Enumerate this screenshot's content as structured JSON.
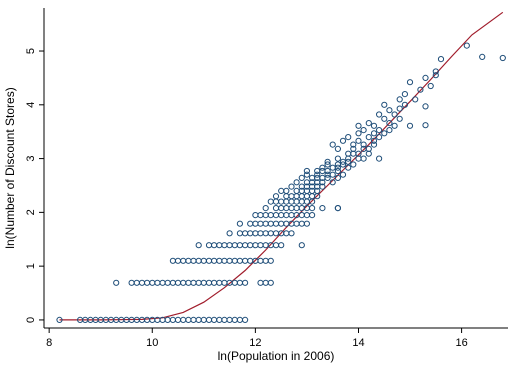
{
  "chart_data": {
    "type": "scatter",
    "xlabel": "ln(Population in 2006)",
    "ylabel": "ln(Number of Discount Stores)",
    "xlim": [
      7.9,
      16.9
    ],
    "ylim": [
      -0.15,
      5.8
    ],
    "x_ticks": [
      8,
      10,
      12,
      14,
      16
    ],
    "y_ticks": [
      0,
      1,
      2,
      3,
      4,
      5
    ],
    "grid": false,
    "legend": "none",
    "colors": {
      "points": "#1f4e79",
      "fit_line": "#a11d2c",
      "axis": "#000000"
    },
    "series": [
      {
        "type": "scatter",
        "points": [
          [
            8.2,
            0
          ],
          [
            8.6,
            0
          ],
          [
            8.7,
            0
          ],
          [
            8.8,
            0
          ],
          [
            8.9,
            0
          ],
          [
            9.0,
            0
          ],
          [
            9.1,
            0
          ],
          [
            9.2,
            0
          ],
          [
            9.3,
            0
          ],
          [
            9.4,
            0
          ],
          [
            9.5,
            0
          ],
          [
            9.6,
            0
          ],
          [
            9.7,
            0
          ],
          [
            9.8,
            0
          ],
          [
            9.9,
            0
          ],
          [
            10.0,
            0
          ],
          [
            10.1,
            0
          ],
          [
            10.2,
            0
          ],
          [
            10.3,
            0
          ],
          [
            10.4,
            0
          ],
          [
            10.5,
            0
          ],
          [
            10.6,
            0
          ],
          [
            10.7,
            0
          ],
          [
            10.8,
            0
          ],
          [
            10.9,
            0
          ],
          [
            11.0,
            0
          ],
          [
            11.1,
            0
          ],
          [
            11.2,
            0
          ],
          [
            11.3,
            0
          ],
          [
            11.4,
            0
          ],
          [
            11.5,
            0
          ],
          [
            11.6,
            0
          ],
          [
            11.7,
            0
          ],
          [
            11.8,
            0
          ],
          [
            9.3,
            0.69
          ],
          [
            9.6,
            0.69
          ],
          [
            9.7,
            0.69
          ],
          [
            9.8,
            0.69
          ],
          [
            9.9,
            0.69
          ],
          [
            10.0,
            0.69
          ],
          [
            10.1,
            0.69
          ],
          [
            10.2,
            0.69
          ],
          [
            10.3,
            0.69
          ],
          [
            10.4,
            0.69
          ],
          [
            10.5,
            0.69
          ],
          [
            10.6,
            0.69
          ],
          [
            10.7,
            0.69
          ],
          [
            10.8,
            0.69
          ],
          [
            10.9,
            0.69
          ],
          [
            11.0,
            0.69
          ],
          [
            11.1,
            0.69
          ],
          [
            11.2,
            0.69
          ],
          [
            11.3,
            0.69
          ],
          [
            11.4,
            0.69
          ],
          [
            11.5,
            0.69
          ],
          [
            11.6,
            0.69
          ],
          [
            11.7,
            0.69
          ],
          [
            11.8,
            0.69
          ],
          [
            12.1,
            0.69
          ],
          [
            12.2,
            0.69
          ],
          [
            12.3,
            0.69
          ],
          [
            10.4,
            1.1
          ],
          [
            10.5,
            1.1
          ],
          [
            10.6,
            1.1
          ],
          [
            10.7,
            1.1
          ],
          [
            10.8,
            1.1
          ],
          [
            10.9,
            1.1
          ],
          [
            11.0,
            1.1
          ],
          [
            11.1,
            1.1
          ],
          [
            11.2,
            1.1
          ],
          [
            11.3,
            1.1
          ],
          [
            11.4,
            1.1
          ],
          [
            11.5,
            1.1
          ],
          [
            11.6,
            1.1
          ],
          [
            11.7,
            1.1
          ],
          [
            11.8,
            1.1
          ],
          [
            11.9,
            1.1
          ],
          [
            12.0,
            1.1
          ],
          [
            12.1,
            1.1
          ],
          [
            12.2,
            1.1
          ],
          [
            12.3,
            1.1
          ],
          [
            10.9,
            1.39
          ],
          [
            11.1,
            1.39
          ],
          [
            11.2,
            1.39
          ],
          [
            11.3,
            1.39
          ],
          [
            11.4,
            1.39
          ],
          [
            11.5,
            1.39
          ],
          [
            11.6,
            1.39
          ],
          [
            11.7,
            1.39
          ],
          [
            11.8,
            1.39
          ],
          [
            11.9,
            1.39
          ],
          [
            12.0,
            1.39
          ],
          [
            12.1,
            1.39
          ],
          [
            12.2,
            1.39
          ],
          [
            12.3,
            1.39
          ],
          [
            12.4,
            1.39
          ],
          [
            12.5,
            1.39
          ],
          [
            12.9,
            1.39
          ],
          [
            11.5,
            1.61
          ],
          [
            11.7,
            1.61
          ],
          [
            11.8,
            1.61
          ],
          [
            11.9,
            1.61
          ],
          [
            12.0,
            1.61
          ],
          [
            12.1,
            1.61
          ],
          [
            12.2,
            1.61
          ],
          [
            12.3,
            1.61
          ],
          [
            12.4,
            1.61
          ],
          [
            12.5,
            1.61
          ],
          [
            12.6,
            1.61
          ],
          [
            12.7,
            1.61
          ],
          [
            11.7,
            1.79
          ],
          [
            11.9,
            1.79
          ],
          [
            12.0,
            1.79
          ],
          [
            12.1,
            1.79
          ],
          [
            12.2,
            1.79
          ],
          [
            12.3,
            1.79
          ],
          [
            12.4,
            1.79
          ],
          [
            12.5,
            1.79
          ],
          [
            12.6,
            1.79
          ],
          [
            12.7,
            1.79
          ],
          [
            12.8,
            1.79
          ],
          [
            12.9,
            1.79
          ],
          [
            13.0,
            1.79
          ],
          [
            12.0,
            1.95
          ],
          [
            12.1,
            1.95
          ],
          [
            12.2,
            1.95
          ],
          [
            12.3,
            1.95
          ],
          [
            12.4,
            1.95
          ],
          [
            12.5,
            1.95
          ],
          [
            12.6,
            1.95
          ],
          [
            12.7,
            1.95
          ],
          [
            12.8,
            1.95
          ],
          [
            12.9,
            1.95
          ],
          [
            13.0,
            1.95
          ],
          [
            13.1,
            1.95
          ],
          [
            12.2,
            2.08
          ],
          [
            12.4,
            2.08
          ],
          [
            12.5,
            2.08
          ],
          [
            12.6,
            2.08
          ],
          [
            12.7,
            2.08
          ],
          [
            12.8,
            2.08
          ],
          [
            12.9,
            2.08
          ],
          [
            13.0,
            2.08
          ],
          [
            13.1,
            2.08
          ],
          [
            13.3,
            2.08
          ],
          [
            13.6,
            2.08
          ],
          [
            12.3,
            2.2
          ],
          [
            12.4,
            2.2
          ],
          [
            12.5,
            2.2
          ],
          [
            12.6,
            2.2
          ],
          [
            12.7,
            2.2
          ],
          [
            12.8,
            2.2
          ],
          [
            12.9,
            2.2
          ],
          [
            13.0,
            2.2
          ],
          [
            13.1,
            2.2
          ],
          [
            12.4,
            2.3
          ],
          [
            12.6,
            2.3
          ],
          [
            12.7,
            2.3
          ],
          [
            12.8,
            2.3
          ],
          [
            12.9,
            2.3
          ],
          [
            13.0,
            2.3
          ],
          [
            13.1,
            2.3
          ],
          [
            13.2,
            2.3
          ],
          [
            12.5,
            2.4
          ],
          [
            12.6,
            2.4
          ],
          [
            12.8,
            2.4
          ],
          [
            12.9,
            2.4
          ],
          [
            13.0,
            2.4
          ],
          [
            13.1,
            2.4
          ],
          [
            13.2,
            2.4
          ],
          [
            12.7,
            2.48
          ],
          [
            12.9,
            2.48
          ],
          [
            13.0,
            2.48
          ],
          [
            13.1,
            2.48
          ],
          [
            13.2,
            2.48
          ],
          [
            13.3,
            2.48
          ],
          [
            12.8,
            2.56
          ],
          [
            13.0,
            2.56
          ],
          [
            13.1,
            2.56
          ],
          [
            13.2,
            2.56
          ],
          [
            13.3,
            2.56
          ],
          [
            13.5,
            2.56
          ],
          [
            12.9,
            2.64
          ],
          [
            13.1,
            2.64
          ],
          [
            13.2,
            2.64
          ],
          [
            13.3,
            2.64
          ],
          [
            13.4,
            2.64
          ],
          [
            13.6,
            2.64
          ],
          [
            13.0,
            2.7
          ],
          [
            13.2,
            2.7
          ],
          [
            13.4,
            2.7
          ],
          [
            13.5,
            2.7
          ],
          [
            13.7,
            2.7
          ],
          [
            13.0,
            2.77
          ],
          [
            13.2,
            2.77
          ],
          [
            13.3,
            2.77
          ],
          [
            13.4,
            2.77
          ],
          [
            13.6,
            2.77
          ],
          [
            13.3,
            2.83
          ],
          [
            13.5,
            2.83
          ],
          [
            13.6,
            2.83
          ],
          [
            13.8,
            2.83
          ],
          [
            13.4,
            2.89
          ],
          [
            13.6,
            2.89
          ],
          [
            13.7,
            2.89
          ],
          [
            13.9,
            2.89
          ],
          [
            13.4,
            2.94
          ],
          [
            13.7,
            2.94
          ],
          [
            13.8,
            2.94
          ],
          [
            13.6,
            3.0
          ],
          [
            13.8,
            3.0
          ],
          [
            14.0,
            3.0
          ],
          [
            14.1,
            3.0
          ],
          [
            14.4,
            3.0
          ],
          [
            13.8,
            3.09
          ],
          [
            13.9,
            3.09
          ],
          [
            14.0,
            3.09
          ],
          [
            14.2,
            3.09
          ],
          [
            13.6,
            3.18
          ],
          [
            13.9,
            3.18
          ],
          [
            14.1,
            3.18
          ],
          [
            14.2,
            3.18
          ],
          [
            13.5,
            3.26
          ],
          [
            13.9,
            3.26
          ],
          [
            14.1,
            3.26
          ],
          [
            14.3,
            3.26
          ],
          [
            13.7,
            3.33
          ],
          [
            14.0,
            3.33
          ],
          [
            14.3,
            3.33
          ],
          [
            13.8,
            3.4
          ],
          [
            14.2,
            3.4
          ],
          [
            14.4,
            3.4
          ],
          [
            14.0,
            3.47
          ],
          [
            14.3,
            3.47
          ],
          [
            14.5,
            3.47
          ],
          [
            14.1,
            3.53
          ],
          [
            14.4,
            3.53
          ],
          [
            14.6,
            3.53
          ],
          [
            14.0,
            3.61
          ],
          [
            14.3,
            3.61
          ],
          [
            14.7,
            3.61
          ],
          [
            15.0,
            3.61
          ],
          [
            14.2,
            3.66
          ],
          [
            14.6,
            3.66
          ],
          [
            14.5,
            3.74
          ],
          [
            14.8,
            3.74
          ],
          [
            14.4,
            3.82
          ],
          [
            14.7,
            3.82
          ],
          [
            14.6,
            3.9
          ],
          [
            14.8,
            3.93
          ],
          [
            14.5,
            4.0
          ],
          [
            14.9,
            4.0
          ],
          [
            14.8,
            4.1
          ],
          [
            15.1,
            4.1
          ],
          [
            14.9,
            4.2
          ],
          [
            15.3,
            3.62
          ],
          [
            15.2,
            4.28
          ],
          [
            15.4,
            4.35
          ],
          [
            15.0,
            4.42
          ],
          [
            15.3,
            4.5
          ],
          [
            15.5,
            4.55
          ],
          [
            15.5,
            4.62
          ],
          [
            15.6,
            4.85
          ],
          [
            16.1,
            5.1
          ],
          [
            16.4,
            4.89
          ],
          [
            16.8,
            4.87
          ],
          [
            15.3,
            3.97
          ],
          [
            13.6,
            2.08
          ]
        ]
      },
      {
        "type": "line",
        "points": [
          [
            8.2,
            0.0
          ],
          [
            9.0,
            0.0
          ],
          [
            9.8,
            0.01
          ],
          [
            10.2,
            0.04
          ],
          [
            10.6,
            0.14
          ],
          [
            11.0,
            0.33
          ],
          [
            11.4,
            0.6
          ],
          [
            11.8,
            0.92
          ],
          [
            12.2,
            1.3
          ],
          [
            12.6,
            1.72
          ],
          [
            13.0,
            2.12
          ],
          [
            13.4,
            2.5
          ],
          [
            13.8,
            2.88
          ],
          [
            14.2,
            3.26
          ],
          [
            14.6,
            3.66
          ],
          [
            15.0,
            4.06
          ],
          [
            15.4,
            4.47
          ],
          [
            15.8,
            4.89
          ],
          [
            16.2,
            5.3
          ],
          [
            16.8,
            5.72
          ]
        ]
      }
    ]
  }
}
